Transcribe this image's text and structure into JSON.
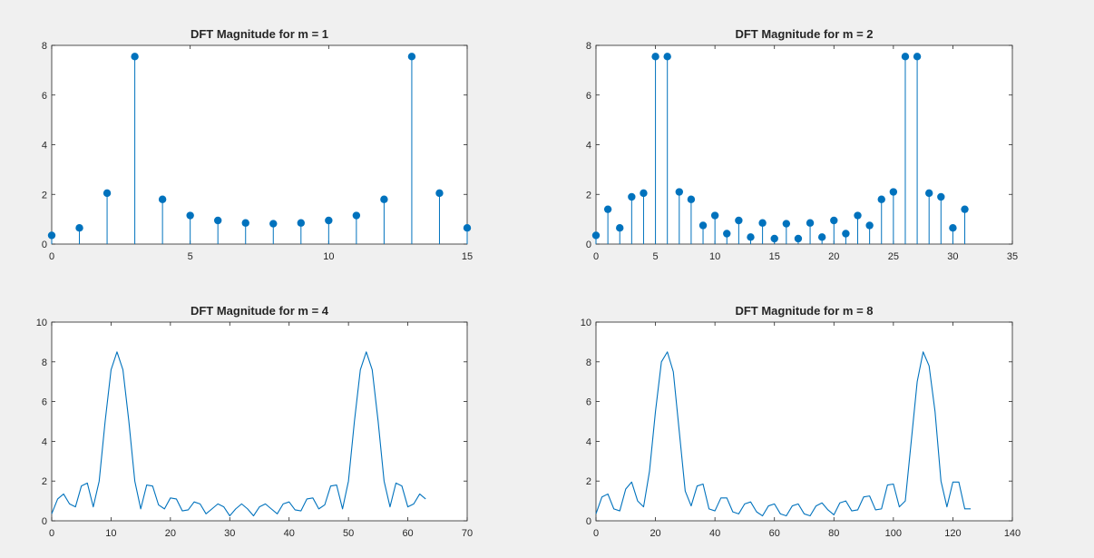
{
  "colors": {
    "figure_bg": "#f0f0f0",
    "axes_bg": "#ffffff",
    "axis": "#262626",
    "series": "#0072bd"
  },
  "chart_data": [
    {
      "type": "stem",
      "title": "DFT Magnitude for m = 1",
      "xlim": [
        0,
        15
      ],
      "ylim": [
        0,
        8
      ],
      "xticks": [
        0,
        5,
        10,
        15
      ],
      "yticks": [
        0,
        2,
        4,
        6,
        8
      ],
      "x": [
        0,
        1,
        2,
        3,
        4,
        5,
        6,
        7,
        8,
        9,
        10,
        11,
        12,
        13,
        14,
        15
      ],
      "values": [
        0.35,
        0.65,
        2.05,
        7.55,
        1.8,
        1.15,
        0.95,
        0.85,
        0.82,
        0.85,
        0.95,
        1.15,
        1.8,
        7.55,
        2.05,
        0.65
      ],
      "grid": false
    },
    {
      "type": "stem",
      "title": "DFT Magnitude for m = 2",
      "xlim": [
        0,
        35
      ],
      "ylim": [
        0,
        8
      ],
      "xticks": [
        0,
        5,
        10,
        15,
        20,
        25,
        30,
        35
      ],
      "yticks": [
        0,
        2,
        4,
        6,
        8
      ],
      "x": [
        0,
        1,
        2,
        3,
        4,
        5,
        6,
        7,
        8,
        9,
        10,
        11,
        12,
        13,
        14,
        15,
        16,
        17,
        18,
        19,
        20,
        21,
        22,
        23,
        24,
        25,
        26,
        27,
        28,
        29,
        30,
        31
      ],
      "values": [
        0.35,
        1.4,
        0.65,
        1.9,
        2.05,
        7.55,
        7.55,
        2.1,
        1.8,
        0.75,
        1.15,
        0.42,
        0.95,
        0.28,
        0.85,
        0.22,
        0.82,
        0.22,
        0.85,
        0.28,
        0.95,
        0.42,
        1.15,
        0.75,
        1.8,
        2.1,
        7.55,
        7.55,
        2.05,
        1.9,
        0.65,
        1.4
      ],
      "grid": false
    },
    {
      "type": "line",
      "title": "DFT Magnitude for m = 4",
      "xlim": [
        0,
        70
      ],
      "ylim": [
        0,
        10
      ],
      "xticks": [
        0,
        10,
        20,
        30,
        40,
        50,
        60,
        70
      ],
      "yticks": [
        0,
        2,
        4,
        6,
        8,
        10
      ],
      "x": [
        0,
        1,
        2,
        3,
        4,
        5,
        6,
        7,
        8,
        9,
        10,
        11,
        12,
        13,
        14,
        15,
        16,
        17,
        18,
        19,
        20,
        21,
        22,
        23,
        24,
        25,
        26,
        27,
        28,
        29,
        30,
        31,
        32,
        33,
        34,
        35,
        36,
        37,
        38,
        39,
        40,
        41,
        42,
        43,
        44,
        45,
        46,
        47,
        48,
        49,
        50,
        51,
        52,
        53,
        54,
        55,
        56,
        57,
        58,
        59,
        60,
        61,
        62,
        63
      ],
      "values": [
        0.35,
        1.1,
        1.35,
        0.85,
        0.7,
        1.75,
        1.9,
        0.7,
        2.0,
        5.0,
        7.6,
        8.5,
        7.6,
        5.0,
        2.0,
        0.6,
        1.8,
        1.75,
        0.8,
        0.6,
        1.15,
        1.1,
        0.5,
        0.55,
        0.95,
        0.85,
        0.35,
        0.6,
        0.85,
        0.7,
        0.25,
        0.6,
        0.85,
        0.6,
        0.25,
        0.7,
        0.85,
        0.6,
        0.35,
        0.85,
        0.95,
        0.55,
        0.5,
        1.1,
        1.15,
        0.6,
        0.8,
        1.75,
        1.8,
        0.6,
        2.0,
        5.0,
        7.6,
        8.5,
        7.6,
        5.0,
        2.0,
        0.7,
        1.9,
        1.75,
        0.7,
        0.85,
        1.35,
        1.1
      ],
      "grid": false
    },
    {
      "type": "line",
      "title": "DFT Magnitude for m = 8",
      "xlim": [
        0,
        140
      ],
      "ylim": [
        0,
        10
      ],
      "xticks": [
        0,
        20,
        40,
        60,
        80,
        100,
        120,
        140
      ],
      "yticks": [
        0,
        2,
        4,
        6,
        8,
        10
      ],
      "x": [
        0,
        2,
        4,
        6,
        8,
        10,
        12,
        14,
        16,
        18,
        20,
        22,
        24,
        26,
        28,
        30,
        32,
        34,
        36,
        38,
        40,
        42,
        44,
        46,
        48,
        50,
        52,
        54,
        56,
        58,
        60,
        62,
        64,
        66,
        68,
        70,
        72,
        74,
        76,
        78,
        80,
        82,
        84,
        86,
        88,
        90,
        92,
        94,
        96,
        98,
        100,
        102,
        104,
        106,
        108,
        110,
        112,
        114,
        116,
        118,
        120,
        122,
        124,
        126
      ],
      "values": [
        0.35,
        1.2,
        1.35,
        0.6,
        0.5,
        1.6,
        1.95,
        1.0,
        0.7,
        2.5,
        5.5,
        8.0,
        8.5,
        7.5,
        4.5,
        1.5,
        0.75,
        1.75,
        1.85,
        0.6,
        0.5,
        1.15,
        1.15,
        0.45,
        0.35,
        0.85,
        0.95,
        0.45,
        0.25,
        0.75,
        0.85,
        0.35,
        0.25,
        0.75,
        0.85,
        0.35,
        0.25,
        0.75,
        0.9,
        0.55,
        0.3,
        0.9,
        1.0,
        0.5,
        0.55,
        1.2,
        1.25,
        0.55,
        0.6,
        1.8,
        1.85,
        0.7,
        1.0,
        4.0,
        7.0,
        8.5,
        7.8,
        5.5,
        2.0,
        0.7,
        1.95,
        1.95,
        0.6,
        0.6
      ],
      "grid": false
    }
  ]
}
